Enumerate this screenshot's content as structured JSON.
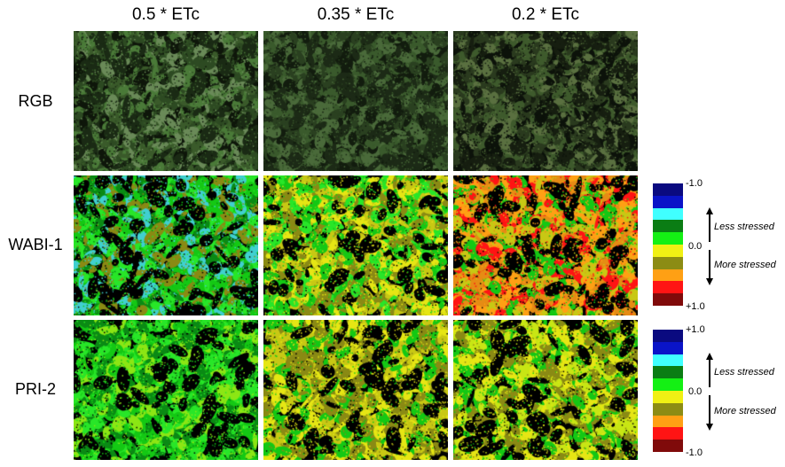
{
  "columns": [
    "0.5 * ETc",
    "0.35 * ETc",
    "0.2 * ETc"
  ],
  "rows": [
    "RGB",
    "WABI-1",
    "PRI-2"
  ],
  "colorbar_colors": [
    "#0a0a80",
    "#0a14c8",
    "#40ffff",
    "#0a7d14",
    "#14f014",
    "#f0f014",
    "#8c8c14",
    "#ffa014",
    "#ff1414",
    "#800a0a"
  ],
  "wabi_scale": {
    "top": "-1.0",
    "mid": "0.0",
    "bottom": "+1.0",
    "less": "Less stressed",
    "more": "More stressed"
  },
  "pri_scale": {
    "top": "+1.0",
    "mid": "0.0",
    "bottom": "-1.0",
    "less": "Less stressed",
    "more": "More stressed"
  },
  "panel_palettes": {
    "rgb": [
      [
        "#1a2a14",
        "#2d4a22",
        "#4a7a38",
        "#0e160a",
        "#6a8a58",
        "#3a5a2a"
      ],
      [
        "#1c2a16",
        "#2a4020",
        "#3a5a2c",
        "#121c0e",
        "#4a6a3a"
      ],
      [
        "#161e10",
        "#2a3a1e",
        "#3e5a2c",
        "#0c120a",
        "#5a7040"
      ]
    ],
    "wabi": [
      [
        "#000000",
        "#14c814",
        "#0a8a14",
        "#28e628",
        "#40d0d0",
        "#8a8a14"
      ],
      [
        "#000000",
        "#e6e614",
        "#14c814",
        "#c8c814",
        "#8a8a14",
        "#28e628"
      ],
      [
        "#000000",
        "#ffa014",
        "#e68c14",
        "#ff1414",
        "#c8c814",
        "#14c814"
      ]
    ],
    "pri": [
      [
        "#000000",
        "#14c814",
        "#28e628",
        "#0a8a14",
        "#8ce614"
      ],
      [
        "#000000",
        "#e6e614",
        "#c8c814",
        "#14c814",
        "#8a8a14"
      ],
      [
        "#000000",
        "#e6e614",
        "#c8e614",
        "#14c814",
        "#8a8a14"
      ]
    ]
  }
}
